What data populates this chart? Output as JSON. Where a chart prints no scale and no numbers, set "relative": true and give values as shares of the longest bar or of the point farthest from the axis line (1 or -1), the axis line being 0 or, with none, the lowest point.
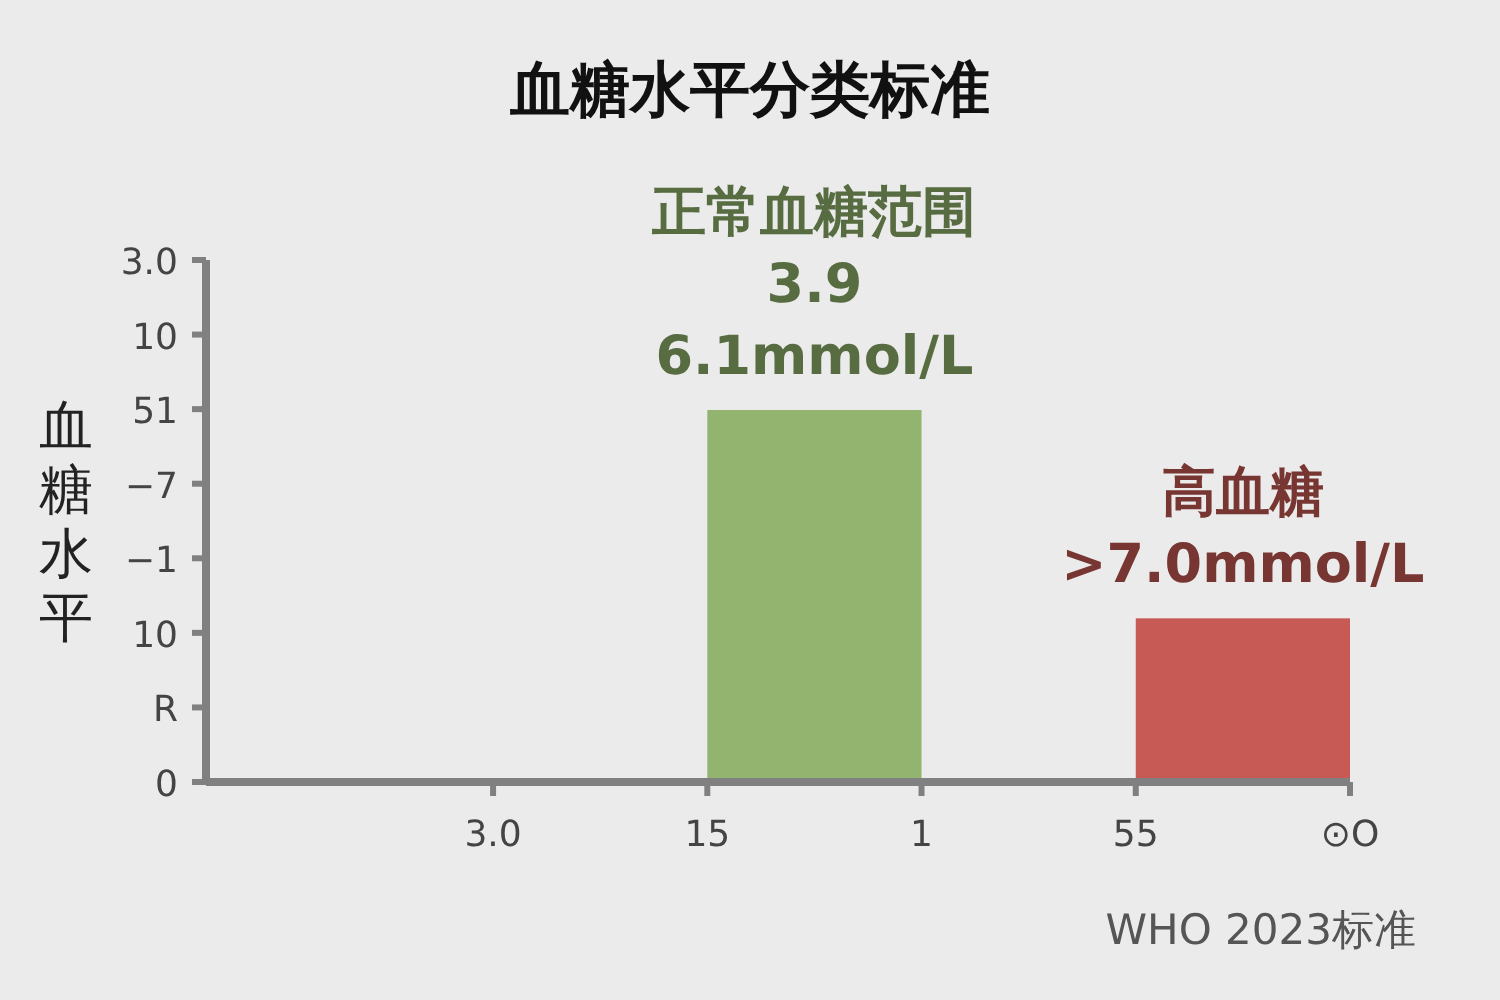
{
  "chart_data": {
    "type": "bar",
    "title": "血糖水平分类标准",
    "ylabel": "血糖水平",
    "relative": true,
    "categories": [
      null,
      "3.0",
      null,
      "15",
      null,
      "1",
      null,
      "55",
      null,
      "⊙O"
    ],
    "values": [
      null,
      null,
      null,
      null,
      1,
      null,
      null,
      null,
      0.44,
      null
    ],
    "colors": [
      null,
      null,
      null,
      null,
      "#93b46e",
      null,
      null,
      null,
      "#c85a55",
      null
    ],
    "annotations": [
      {
        "text": "正常血糖范围\n3.9\n6.1mmol/L",
        "y": 1
      },
      {
        "text": "高血糖\n>7.0mmol/L",
        "y": 0.44
      },
      "3.0",
      "10",
      "51",
      "−7",
      "−1",
      "10",
      "R",
      "0",
      "WHO 2023标准"
    ]
  }
}
